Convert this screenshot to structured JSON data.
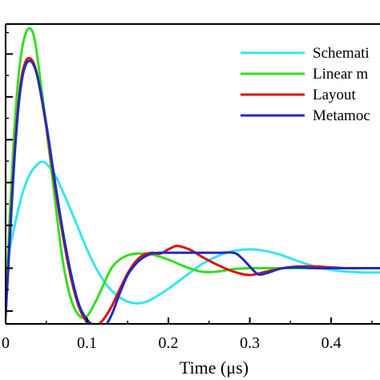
{
  "chart_data": {
    "type": "line",
    "title": "",
    "xlabel": "Time (μs)",
    "ylabel": "",
    "xlim": [
      0,
      0.46
    ],
    "ylim": [
      -0.65,
      2.85
    ],
    "x_ticks": [
      0,
      0.1,
      0.2,
      0.3,
      0.4
    ],
    "x_tick_labels": [
      "0",
      "0.1",
      "0.2",
      "0.3",
      "0.4"
    ],
    "y_ticks": [
      -0.5,
      0,
      0.5,
      1.0,
      1.5,
      2.0,
      2.5
    ],
    "grid": false,
    "legend": {
      "placement": "top-right"
    },
    "series": [
      {
        "name": "Schemati",
        "color": "#33e6f0",
        "x": [
          0,
          0.01,
          0.02,
          0.03,
          0.04,
          0.045,
          0.05,
          0.06,
          0.07,
          0.08,
          0.09,
          0.1,
          0.11,
          0.12,
          0.13,
          0.14,
          0.15,
          0.16,
          0.17,
          0.18,
          0.2,
          0.22,
          0.24,
          0.26,
          0.28,
          0.3,
          0.32,
          0.34,
          0.36,
          0.38,
          0.4,
          0.42,
          0.44,
          0.46
        ],
        "y": [
          0,
          0.45,
          0.85,
          1.1,
          1.22,
          1.24,
          1.22,
          1.1,
          0.9,
          0.68,
          0.45,
          0.22,
          0.02,
          -0.14,
          -0.26,
          -0.34,
          -0.39,
          -0.41,
          -0.4,
          -0.36,
          -0.24,
          -0.1,
          0.04,
          0.14,
          0.2,
          0.22,
          0.2,
          0.15,
          0.08,
          0.02,
          -0.02,
          -0.04,
          -0.05,
          -0.05
        ]
      },
      {
        "name": "Linear m",
        "color": "#33dd22",
        "x": [
          0,
          0.005,
          0.01,
          0.015,
          0.02,
          0.025,
          0.03,
          0.035,
          0.04,
          0.05,
          0.06,
          0.07,
          0.08,
          0.09,
          0.1,
          0.11,
          0.12,
          0.13,
          0.14,
          0.15,
          0.16,
          0.17,
          0.18,
          0.2,
          0.22,
          0.24,
          0.26,
          0.28,
          0.3,
          0.32,
          0.34,
          0.36,
          0.38,
          0.4,
          0.42,
          0.44,
          0.46
        ],
        "y": [
          -0.6,
          0.6,
          1.5,
          2.15,
          2.55,
          2.75,
          2.8,
          2.7,
          2.4,
          1.65,
          0.85,
          0.1,
          -0.35,
          -0.55,
          -0.56,
          -0.4,
          -0.2,
          0.0,
          0.1,
          0.15,
          0.17,
          0.17,
          0.16,
          0.1,
          0.02,
          -0.04,
          -0.04,
          -0.01,
          0.0,
          0.0,
          0.0,
          0.0,
          0.0,
          0.0,
          0.0,
          0.0,
          0.0
        ]
      },
      {
        "name": "Layout",
        "color": "#dd1111",
        "x": [
          0,
          0.005,
          0.01,
          0.015,
          0.02,
          0.025,
          0.03,
          0.035,
          0.04,
          0.05,
          0.06,
          0.07,
          0.08,
          0.09,
          0.1,
          0.11,
          0.12,
          0.13,
          0.14,
          0.15,
          0.16,
          0.17,
          0.18,
          0.19,
          0.2,
          0.21,
          0.22,
          0.23,
          0.24,
          0.26,
          0.28,
          0.3,
          0.32,
          0.34,
          0.36,
          0.38,
          0.4,
          0.42,
          0.44,
          0.46
        ],
        "y": [
          -0.55,
          0.35,
          1.2,
          1.85,
          2.25,
          2.42,
          2.45,
          2.38,
          2.2,
          1.65,
          1.0,
          0.4,
          -0.1,
          -0.45,
          -0.63,
          -0.68,
          -0.6,
          -0.45,
          -0.25,
          -0.06,
          0.08,
          0.16,
          0.18,
          0.17,
          0.22,
          0.26,
          0.24,
          0.2,
          0.14,
          0.04,
          -0.04,
          -0.08,
          -0.04,
          0.0,
          0.02,
          0.02,
          0.01,
          0.0,
          0.0,
          0.0
        ]
      },
      {
        "name": "Metamoc",
        "color": "#1f2dbb",
        "x": [
          0,
          0.005,
          0.01,
          0.015,
          0.02,
          0.025,
          0.03,
          0.035,
          0.04,
          0.05,
          0.06,
          0.07,
          0.08,
          0.09,
          0.1,
          0.11,
          0.12,
          0.13,
          0.14,
          0.15,
          0.16,
          0.17,
          0.18,
          0.19,
          0.2,
          0.22,
          0.24,
          0.26,
          0.28,
          0.29,
          0.3,
          0.31,
          0.32,
          0.34,
          0.36,
          0.38,
          0.4,
          0.42,
          0.44,
          0.46
        ],
        "y": [
          -0.55,
          0.3,
          1.15,
          1.8,
          2.2,
          2.38,
          2.42,
          2.36,
          2.2,
          1.68,
          1.05,
          0.45,
          -0.05,
          -0.42,
          -0.6,
          -0.68,
          -0.7,
          -0.55,
          -0.3,
          -0.08,
          0.05,
          0.13,
          0.17,
          0.18,
          0.18,
          0.18,
          0.18,
          0.18,
          0.18,
          0.12,
          0.02,
          -0.07,
          -0.06,
          0.0,
          0.01,
          0.0,
          0.0,
          0.0,
          0.0,
          0.0
        ]
      }
    ]
  }
}
